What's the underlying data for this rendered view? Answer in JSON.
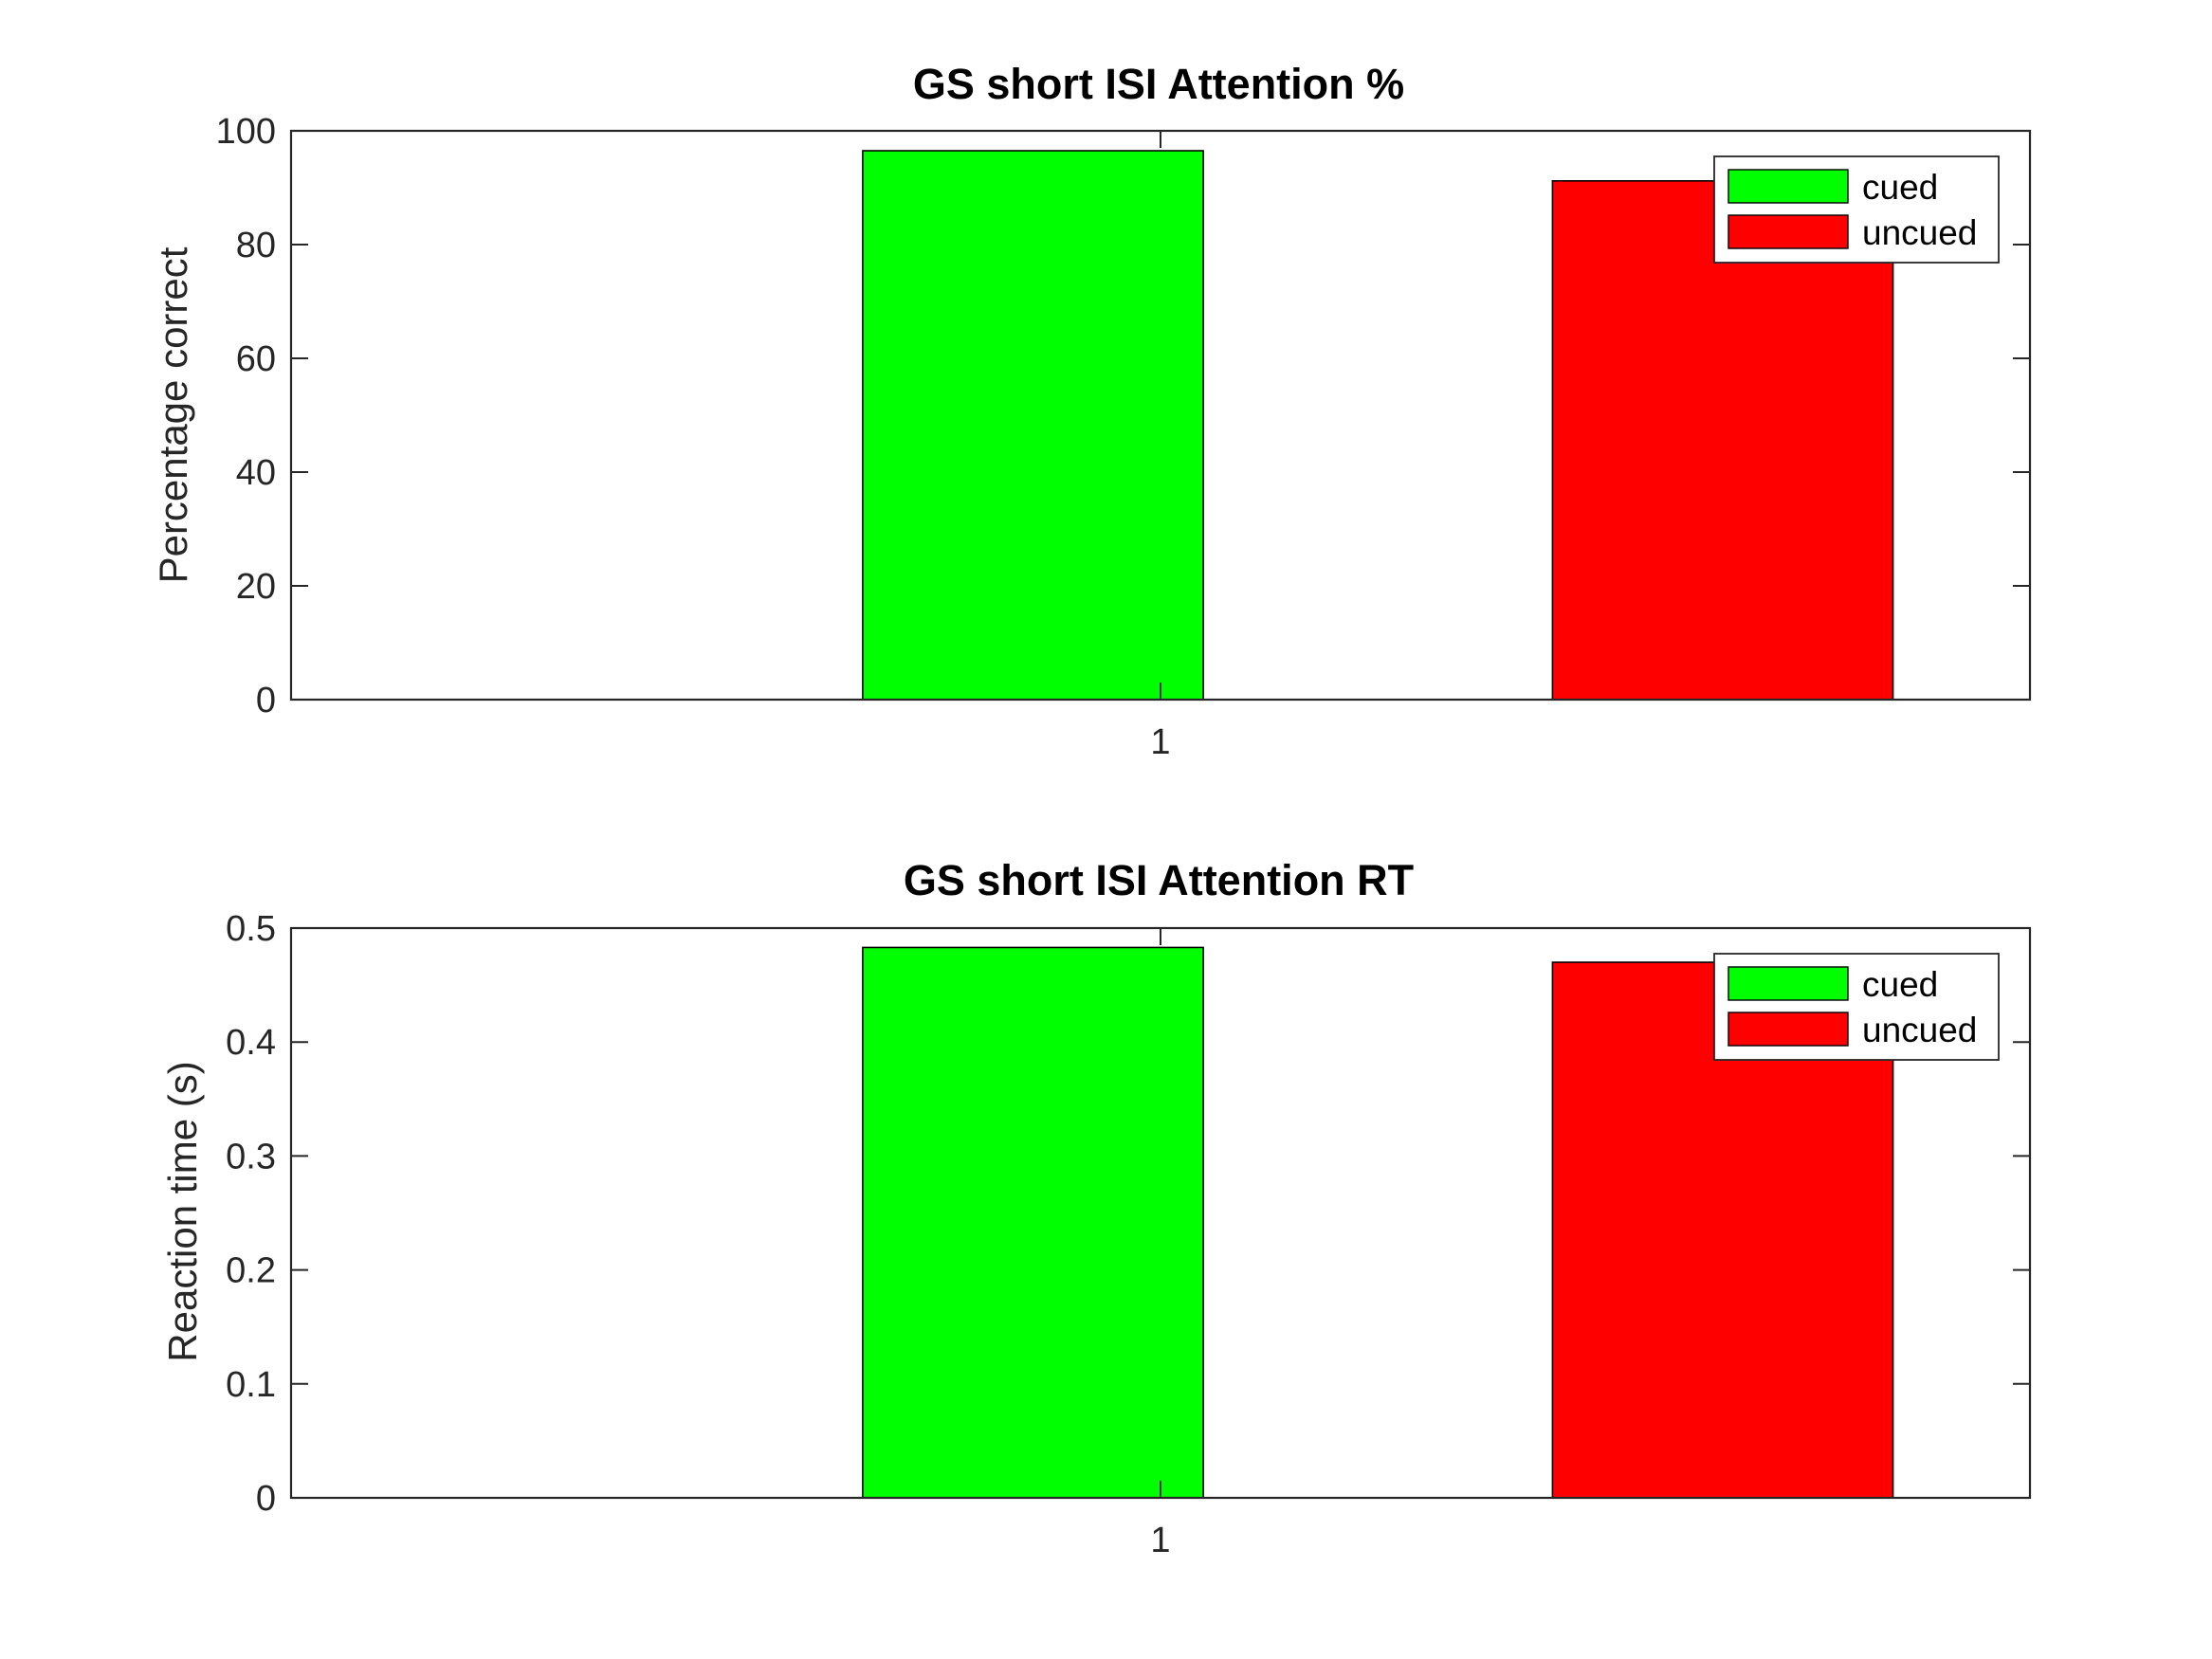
{
  "chart_data": [
    {
      "type": "bar",
      "title": "GS short ISI Attention %",
      "xlabel": "",
      "ylabel": "Percentage correct",
      "categories": [
        "1"
      ],
      "ylim": [
        0,
        100
      ],
      "yticks": [
        0,
        20,
        40,
        60,
        80,
        100
      ],
      "yticklabels": [
        "0",
        "20",
        "40",
        "60",
        "80",
        "100"
      ],
      "xlim": [
        0.4,
        1.6
      ],
      "grid": false,
      "legend_position": "top-right",
      "series": [
        {
          "name": "cued",
          "values": [
            96.5
          ],
          "color": "#00ff00"
        },
        {
          "name": "uncued",
          "values": [
            91.2
          ],
          "color": "#ff0000"
        }
      ]
    },
    {
      "type": "bar",
      "title": "GS short ISI Attention RT",
      "xlabel": "",
      "ylabel": "Reaction time (s)",
      "categories": [
        "1"
      ],
      "ylim": [
        0,
        0.5
      ],
      "yticks": [
        0,
        0.1,
        0.2,
        0.3,
        0.4,
        0.5
      ],
      "yticklabels": [
        "0",
        "0.1",
        "0.2",
        "0.3",
        "0.4",
        "0.5"
      ],
      "xlim": [
        0.4,
        1.6
      ],
      "grid": false,
      "legend_position": "top-right",
      "series": [
        {
          "name": "cued",
          "values": [
            0.483
          ],
          "color": "#00ff00"
        },
        {
          "name": "uncued",
          "values": [
            0.47
          ],
          "color": "#ff0000"
        }
      ]
    }
  ]
}
